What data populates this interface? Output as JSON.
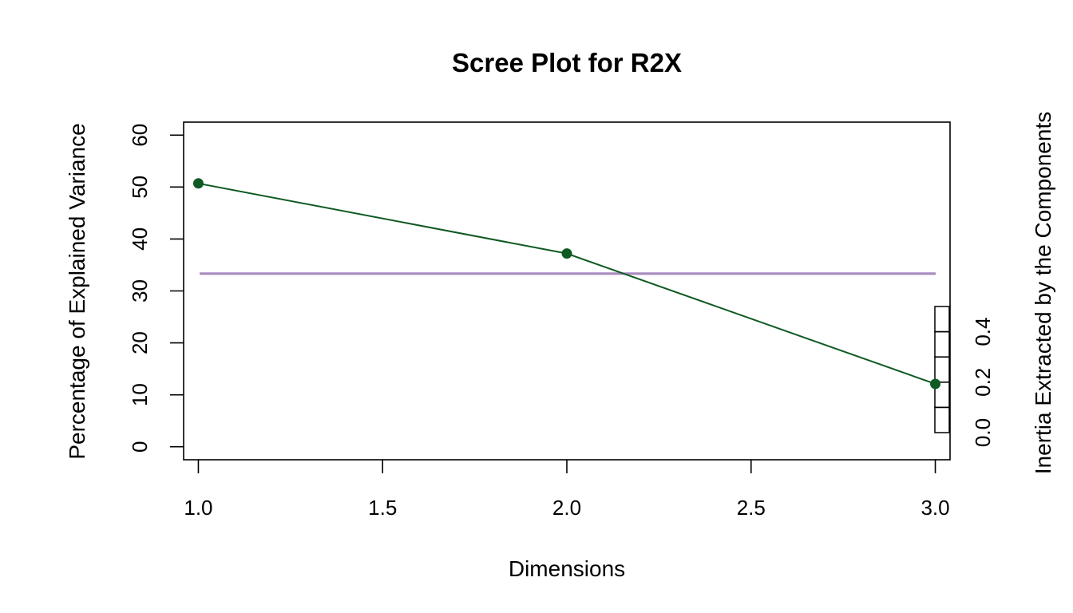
{
  "chart_data": {
    "type": "line",
    "title": "Scree Plot for R2X",
    "xlabel": "Dimensions",
    "ylabel": "Percentage of Explained Variance",
    "y2label": "Inertia Extracted by the Components",
    "x": [
      1,
      2,
      3
    ],
    "series": [
      {
        "values": [
          50.7,
          37.2,
          12.1
        ]
      }
    ],
    "reference_line": {
      "value": 33.33
    },
    "xlim": [
      0.96,
      3.04
    ],
    "ylim": [
      -2.5,
      62.5
    ],
    "xticks": [
      1.0,
      1.5,
      2.0,
      2.5,
      3.0
    ],
    "xtick_labels": [
      "1.0",
      "1.5",
      "2.0",
      "2.5",
      "3.0"
    ],
    "yticks": [
      0,
      10,
      20,
      30,
      40,
      50,
      60
    ],
    "ytick_labels": [
      "0",
      "10",
      "20",
      "30",
      "40",
      "50",
      "60"
    ],
    "y2_inertia_bars": [
      0.1,
      0.1,
      0.1,
      0.1,
      0.1
    ],
    "y2ticks": [
      0.0,
      0.2,
      0.4
    ],
    "y2tick_labels": [
      "0.0",
      "0.2",
      "0.4"
    ],
    "grid": false,
    "colors": {
      "series": "#0f5a23",
      "reference_line": "#a98bbf",
      "axes": "#000000"
    }
  }
}
